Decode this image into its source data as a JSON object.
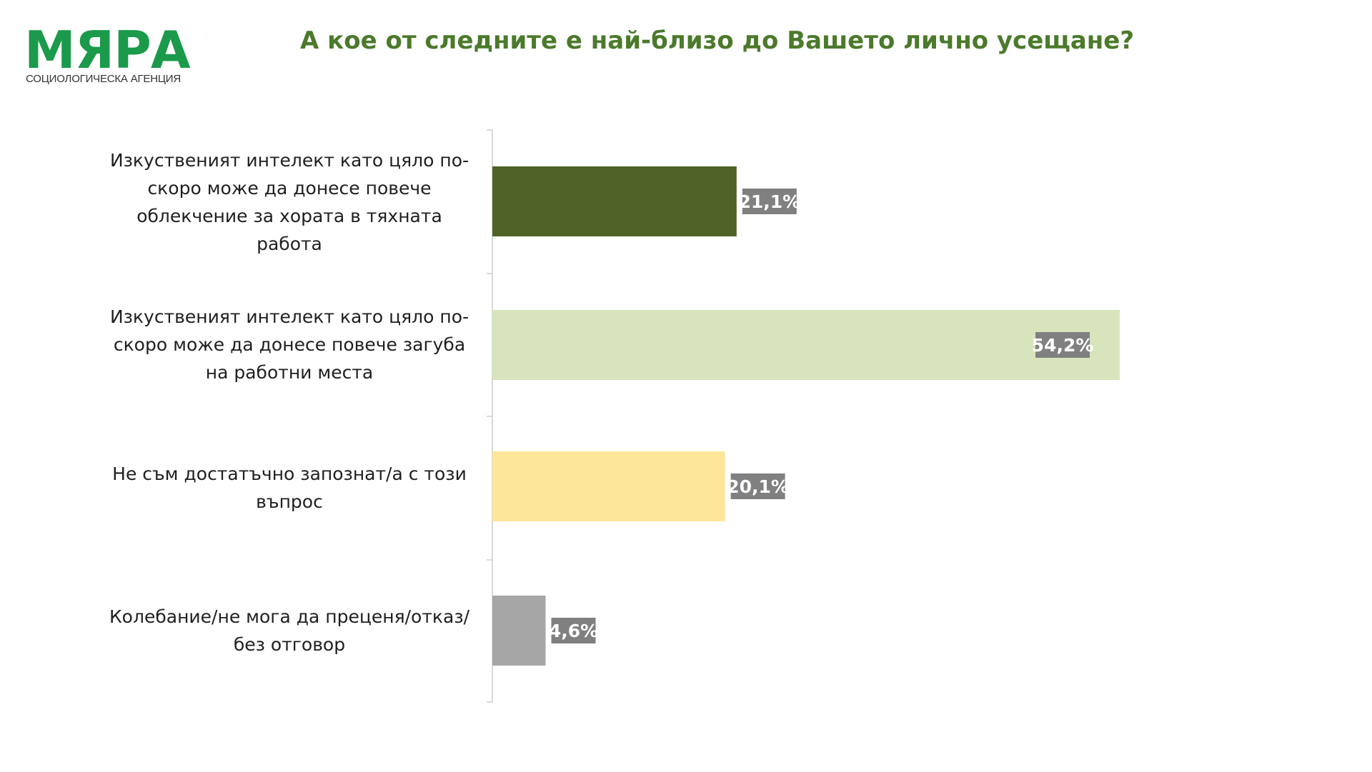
{
  "logo": {
    "text": "МЯРА",
    "subtitle": "СОЦИОЛОГИЧЕСКА АГЕНЦИЯ",
    "color": "#1a9a4a"
  },
  "title": "А кое от следните е най-близо до Вашето лично усещане?",
  "title_color": "#4b7a2b",
  "chart_data": {
    "type": "bar",
    "orientation": "horizontal",
    "categories": [
      "Изкуственият интелект като цяло по-скоро може да донесе повече облекчение за хората в тяхната работа",
      "Изкуственият интелект като цяло по-скоро може да донесе повече загуба на работни места",
      "Не съм достатъчно запознат/а с този въпрос",
      "Колебание/не мога да преценя/отказ/без отговор"
    ],
    "values": [
      21.1,
      54.2,
      20.1,
      4.6
    ],
    "value_labels": [
      "21,1%",
      "54,2%",
      "20,1%",
      "4,6%"
    ],
    "colors": [
      "#4f6228",
      "#d8e4bc",
      "#fde69a",
      "#a6a6a6"
    ],
    "label_box_color": "#808080",
    "xlim": [
      0,
      60
    ],
    "grid": false,
    "legend": "none"
  }
}
